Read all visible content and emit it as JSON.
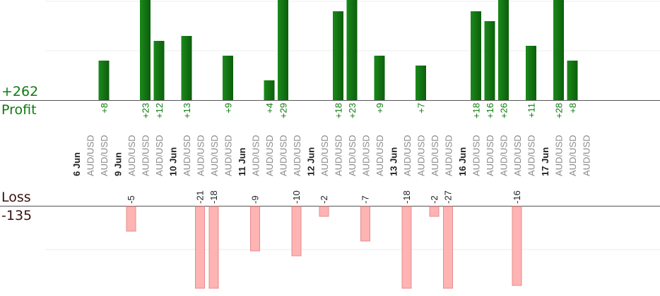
{
  "summary": {
    "profit_total": "+262",
    "profit_label": "Profit",
    "loss_label": "Loss",
    "loss_total": "-135"
  },
  "colors": {
    "profit_bar": "#0c5e0c",
    "profit_bar_light": "#1a8a1a",
    "profit_text": "#0f7a0f",
    "loss_bar": "#ffb3b3",
    "loss_bar_stroke": "#e58c8c",
    "loss_text": "#222222",
    "date_text": "#222222",
    "pair_text": "#8a8a8a",
    "grid": "#ececec",
    "axis": "#555555"
  },
  "chart_data": {
    "type": "bar",
    "description_axis": "trade index",
    "profit_ylim": [
      0,
      20
    ],
    "loss_ylim": [
      0,
      20
    ],
    "trades": [
      {
        "date": "6 Jun",
        "pair": "",
        "kind": "date"
      },
      {
        "pair": "AUD/USD",
        "profit": null,
        "loss": null
      },
      {
        "pair": "AUD/USD",
        "profit": 8,
        "label": "+8"
      },
      {
        "date": "9 Jun",
        "pair": "",
        "kind": "date"
      },
      {
        "pair": "AUD/USD",
        "loss": 5,
        "label": "-5"
      },
      {
        "pair": "AUD/USD",
        "profit": 23,
        "label": "+23"
      },
      {
        "pair": "AUD/USD",
        "profit": 12,
        "label": "+12"
      },
      {
        "date": "10 Jun",
        "pair": "",
        "kind": "date"
      },
      {
        "pair": "AUD/USD",
        "profit": 13,
        "label": "+13"
      },
      {
        "pair": "AUD/USD",
        "loss": 21,
        "label": "-21"
      },
      {
        "pair": "AUD/USD",
        "loss": 18,
        "label": "-18"
      },
      {
        "pair": "AUD/USD",
        "profit": 9,
        "label": "+9"
      },
      {
        "date": "11 Jun",
        "pair": "",
        "kind": "date"
      },
      {
        "pair": "AUD/USD",
        "loss": 9,
        "label": "-9"
      },
      {
        "pair": "AUD/USD",
        "profit": 4,
        "label": "+4"
      },
      {
        "pair": "AUD/USD",
        "profit": 29,
        "label": "+29"
      },
      {
        "pair": "AUD/USD",
        "loss": 10,
        "label": "-10"
      },
      {
        "date": "12 Jun",
        "pair": "",
        "kind": "date"
      },
      {
        "pair": "AUD/USD",
        "loss": 2,
        "label": "-2"
      },
      {
        "pair": "AUD/USD",
        "profit": 18,
        "label": "+18"
      },
      {
        "pair": "AUD/USD",
        "profit": 23,
        "label": "+23"
      },
      {
        "pair": "AUD/USD",
        "loss": 7,
        "label": "-7"
      },
      {
        "pair": "AUD/USD",
        "profit": 9,
        "label": "+9"
      },
      {
        "date": "13 Jun",
        "pair": "",
        "kind": "date"
      },
      {
        "pair": "AUD/USD",
        "loss": 18,
        "label": "-18"
      },
      {
        "pair": "AUD/USD",
        "profit": 7,
        "label": "+7"
      },
      {
        "pair": "AUD/USD",
        "loss": 2,
        "label": "-2"
      },
      {
        "pair": "AUD/USD",
        "loss": 27,
        "label": "-27"
      },
      {
        "date": "16 Jun",
        "pair": "",
        "kind": "date"
      },
      {
        "pair": "AUD/USD",
        "profit": 18,
        "label": "+18"
      },
      {
        "pair": "AUD/USD",
        "profit": 16,
        "label": "+16"
      },
      {
        "pair": "AUD/USD",
        "profit": 26,
        "label": "+26"
      },
      {
        "pair": "AUD/USD",
        "loss": 16,
        "label": "-16"
      },
      {
        "pair": "AUD/USD",
        "profit": 11,
        "label": "+11"
      },
      {
        "date": "17 Jun",
        "pair": "",
        "kind": "date"
      },
      {
        "pair": "AUD/USD",
        "profit": 28,
        "label": "+28"
      },
      {
        "pair": "AUD/USD",
        "profit": 8,
        "label": "+8"
      },
      {
        "pair": "AUD/USD",
        "profit": null,
        "loss": null
      }
    ]
  }
}
